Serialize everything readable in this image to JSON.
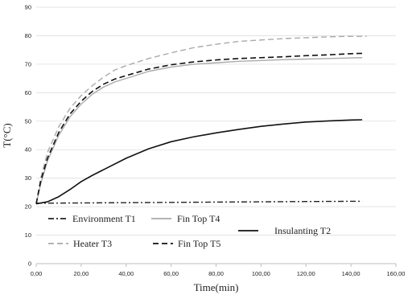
{
  "chart_data": {
    "type": "line",
    "title": "",
    "xlabel": "Time(min)",
    "ylabel": "T(°C)",
    "xlim": [
      0,
      160
    ],
    "ylim": [
      0,
      90
    ],
    "x_ticks": [
      "0,00",
      "20,00",
      "40,00",
      "60,00",
      "80,00",
      "100,00",
      "120,00",
      "140,00",
      "160,00"
    ],
    "y_ticks": [
      "0",
      "10",
      "20",
      "30",
      "40",
      "50",
      "60",
      "70",
      "80",
      "90"
    ],
    "grid": "horizontal",
    "legend_position": "bottom-left inside plot",
    "series": [
      {
        "name": "Environment T1",
        "color": "#222222",
        "dash": "dash-dot",
        "x": [
          0,
          20,
          40,
          60,
          80,
          100,
          120,
          145
        ],
        "y": [
          21.2,
          21.3,
          21.4,
          21.5,
          21.6,
          21.7,
          21.8,
          21.9
        ]
      },
      {
        "name": "Fin Top T4",
        "color": "#aaaaaa",
        "dash": "solid",
        "x": [
          0,
          2,
          5,
          10,
          15,
          20,
          25,
          30,
          35,
          40,
          50,
          60,
          70,
          80,
          90,
          100,
          110,
          120,
          130,
          140,
          145
        ],
        "y": [
          21,
          28,
          36,
          45,
          51.5,
          56,
          59.5,
          62,
          63.8,
          65,
          67.5,
          69,
          70,
          70.5,
          71,
          71.3,
          71.6,
          71.8,
          72,
          72.2,
          72.3
        ]
      },
      {
        "name": "Heater T3",
        "color": "#aaaaaa",
        "dash": "dashed",
        "x": [
          0,
          2,
          5,
          10,
          15,
          20,
          25,
          30,
          35,
          40,
          50,
          60,
          70,
          80,
          90,
          100,
          110,
          120,
          130,
          140,
          147
        ],
        "y": [
          21,
          30,
          39,
          48,
          54.5,
          59,
          62.5,
          65.5,
          68,
          69.5,
          72,
          74,
          75.8,
          77,
          78,
          78.5,
          79,
          79.3,
          79.6,
          79.8,
          79.8
        ]
      },
      {
        "name": "Fin Top T5",
        "color": "#111111",
        "dash": "dashed",
        "x": [
          0,
          2,
          5,
          10,
          15,
          20,
          25,
          30,
          35,
          40,
          50,
          60,
          70,
          80,
          90,
          100,
          110,
          120,
          130,
          140,
          145
        ],
        "y": [
          21,
          29,
          37,
          46,
          52.5,
          57,
          60.5,
          63,
          64.8,
          66,
          68.3,
          69.8,
          70.8,
          71.5,
          72,
          72.3,
          72.6,
          73,
          73.3,
          73.7,
          73.8
        ]
      },
      {
        "name": "Insulanting T2",
        "color": "#111111",
        "dash": "solid",
        "x": [
          0,
          5,
          10,
          15,
          20,
          25,
          30,
          40,
          50,
          60,
          70,
          80,
          90,
          100,
          110,
          120,
          130,
          140,
          145
        ],
        "y": [
          21,
          21.7,
          23.5,
          26,
          28.8,
          31,
          33,
          37,
          40.3,
          42.8,
          44.5,
          45.9,
          47.1,
          48.2,
          49,
          49.7,
          50.1,
          50.4,
          50.5
        ]
      }
    ]
  }
}
